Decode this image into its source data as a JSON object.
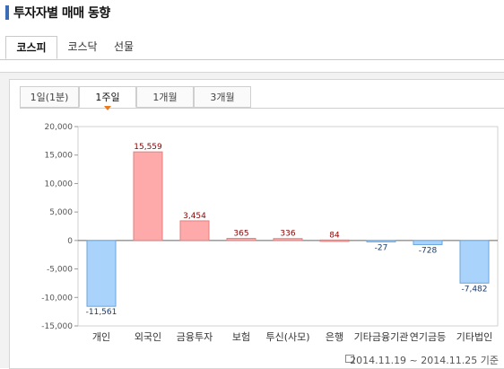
{
  "page_title": "투자자별 매매 동향",
  "market_tabs": [
    "코스피",
    "코스닥",
    "선물"
  ],
  "period_tabs": [
    "1일(1분)",
    "1주일",
    "1개월",
    "3개월"
  ],
  "footer_text": "2014.11.19 ~ 2014.11.25 기준",
  "chart_data": {
    "type": "bar",
    "categories": [
      "개인",
      "외국인",
      "금융투자",
      "보험",
      "투신(사모)",
      "은행",
      "기타금융기관",
      "연기금등",
      "기타법인"
    ],
    "values": [
      -11561,
      15559,
      3454,
      365,
      336,
      84,
      -27,
      -728,
      -7482
    ],
    "value_labels": [
      "-11,561",
      "15,559",
      "3,454",
      "365",
      "336",
      "84",
      "-27",
      "-728",
      "-7,482"
    ],
    "yticks": [
      "20,000",
      "15,000",
      "10,000",
      "5,000",
      "0",
      "-5,000",
      "-10,000",
      "-15,000"
    ],
    "ylim": [
      -15000,
      20000
    ],
    "colors": {
      "positive": "#ffaaaa",
      "positive_stroke": "#e57f7f",
      "negative": "#a9d3fb",
      "negative_stroke": "#6aa6dd",
      "positive_label": "#8b0000",
      "negative_label": "#1a3a66"
    }
  }
}
